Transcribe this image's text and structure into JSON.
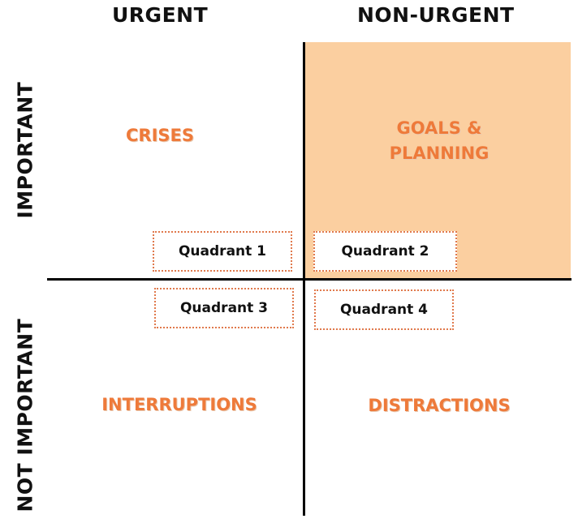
{
  "headers": {
    "urgent": "URGENT",
    "non_urgent": "NON-URGENT",
    "important": "IMPORTANT",
    "not_important": "NOT IMPORTANT"
  },
  "quadrants": [
    {
      "title": "CRISES",
      "label": "Quadrant 1"
    },
    {
      "title": "GOALS &\nPLANNING",
      "label": "Quadrant 2"
    },
    {
      "title": "INTERRUPTIONS",
      "label": "Quadrant 3"
    },
    {
      "title": "DISTRACTIONS",
      "label": "Quadrant 4"
    }
  ],
  "colors": {
    "highlight": "#fbcfa0",
    "title_accent": "#ee7a3a",
    "box_border": "#e0794c"
  }
}
